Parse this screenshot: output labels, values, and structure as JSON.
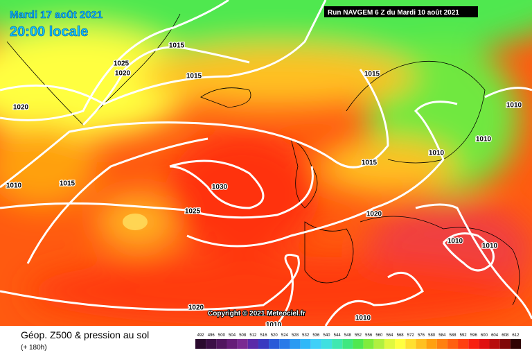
{
  "header": {
    "date": "Mardi 17 août 2021",
    "time": "20:00 locale",
    "run": "Run NAVGEM 6 Z du Mardi 10 août 2021"
  },
  "isobars": [
    "1025",
    "1020",
    "1015",
    "1015",
    "1020",
    "1010",
    "1015",
    "1030",
    "1025",
    "1015",
    "1010",
    "1010",
    "1010",
    "1015",
    "1020",
    "1010",
    "1010",
    "1020",
    "1010",
    "1010"
  ],
  "copyright": "Copyright © 2021 Meteociel.fr",
  "legend": {
    "title": "Géop. Z500 & pression au sol",
    "lead": "(+ 180h)",
    "scale": [
      {
        "label": 492,
        "color": "#2a0a2e"
      },
      {
        "label": 496,
        "color": "#3c0f46"
      },
      {
        "label": 500,
        "color": "#51165f"
      },
      {
        "label": 504,
        "color": "#661e78"
      },
      {
        "label": 508,
        "color": "#7a2a92"
      },
      {
        "label": 512,
        "color": "#5a2aa8"
      },
      {
        "label": 516,
        "color": "#3a3ac0"
      },
      {
        "label": 520,
        "color": "#2a5ad8"
      },
      {
        "label": 524,
        "color": "#2a7ae8"
      },
      {
        "label": 528,
        "color": "#2a9af2"
      },
      {
        "label": 532,
        "color": "#30b8f8"
      },
      {
        "label": 536,
        "color": "#40d0f8"
      },
      {
        "label": 540,
        "color": "#40e0e0"
      },
      {
        "label": 544,
        "color": "#40e8b0"
      },
      {
        "label": 548,
        "color": "#40e880"
      },
      {
        "label": 552,
        "color": "#50e850"
      },
      {
        "label": 556,
        "color": "#80ec3c"
      },
      {
        "label": 560,
        "color": "#b0f040"
      },
      {
        "label": 564,
        "color": "#e0f840"
      },
      {
        "label": 568,
        "color": "#ffff40"
      },
      {
        "label": 572,
        "color": "#ffe030"
      },
      {
        "label": 576,
        "color": "#ffc020"
      },
      {
        "label": 580,
        "color": "#ffa010"
      },
      {
        "label": 584,
        "color": "#ff8010"
      },
      {
        "label": 588,
        "color": "#ff6010"
      },
      {
        "label": 592,
        "color": "#ff4010"
      },
      {
        "label": 596,
        "color": "#f82010"
      },
      {
        "label": 600,
        "color": "#e01010"
      },
      {
        "label": 604,
        "color": "#b80c0c"
      },
      {
        "label": 608,
        "color": "#800808"
      },
      {
        "label": 612,
        "color": "#300404"
      }
    ]
  }
}
